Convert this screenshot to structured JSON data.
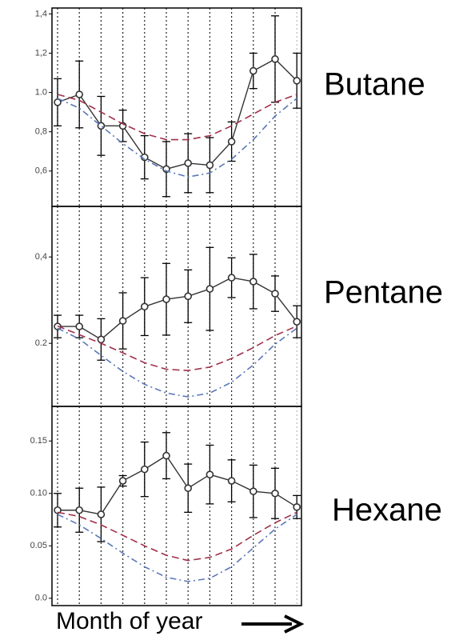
{
  "chart_data": [
    {
      "type": "line",
      "title": "Butane",
      "categories": [
        null,
        null,
        null,
        null,
        null,
        null,
        null,
        null,
        null,
        null,
        null,
        null
      ],
      "ylim": [
        0.42,
        1.43
      ],
      "yticks": [
        {
          "value": 0.6,
          "label": "0,6"
        },
        {
          "value": 0.8,
          "label": "0,8"
        },
        {
          "value": 1,
          "label": "1.0"
        },
        {
          "value": 1.2,
          "label": "1,2"
        },
        {
          "value": 1.4,
          "label": "1,4"
        }
      ],
      "grid": true,
      "series": [
        {
          "color": "#333333",
          "marker": "circle",
          "values": [
            0.95,
            0.99,
            0.83,
            0.83,
            0.67,
            0.61,
            0.64,
            0.63,
            0.75,
            1.11,
            1.17,
            1.06
          ],
          "errors": [
            0.12,
            0.17,
            0.15,
            0.08,
            0.11,
            0.14,
            0.15,
            0.14,
            0.1,
            0.09,
            0.22,
            0.14
          ]
        },
        {
          "color": "#a0304a",
          "dash": "dashed",
          "values": [
            0.99,
            0.96,
            0.9,
            0.84,
            0.79,
            0.76,
            0.76,
            0.78,
            0.83,
            0.89,
            0.95,
            0.99
          ]
        },
        {
          "color": "#5a78b8",
          "dash": "dashdot",
          "values": [
            0.97,
            0.92,
            0.83,
            0.74,
            0.66,
            0.6,
            0.57,
            0.59,
            0.66,
            0.76,
            0.88,
            0.97
          ]
        }
      ]
    },
    {
      "type": "line",
      "title": "Pentane",
      "categories": [
        null,
        null,
        null,
        null,
        null,
        null,
        null,
        null,
        null,
        null,
        null,
        null
      ],
      "ylim": [
        0.054,
        0.517
      ],
      "yticks": [
        {
          "value": 0.2,
          "label": "0.2"
        },
        {
          "value": 0.4,
          "label": "0,4"
        }
      ],
      "grid": true,
      "series": [
        {
          "color": "#333333",
          "marker": "circle",
          "values": [
            0.239,
            0.239,
            0.209,
            0.252,
            0.285,
            0.302,
            0.309,
            0.326,
            0.352,
            0.343,
            0.315,
            0.25
          ],
          "errors": [
            0.026,
            0.026,
            0.048,
            0.065,
            0.067,
            0.083,
            0.061,
            0.096,
            0.046,
            0.063,
            0.041,
            0.037
          ]
        },
        {
          "color": "#a0304a",
          "dash": "dashed",
          "values": [
            0.24,
            0.22,
            0.2,
            0.178,
            0.155,
            0.14,
            0.137,
            0.145,
            0.165,
            0.19,
            0.218,
            0.24
          ]
        },
        {
          "color": "#5a78b8",
          "dash": "dashdot",
          "values": [
            0.235,
            0.21,
            0.172,
            0.135,
            0.105,
            0.085,
            0.076,
            0.085,
            0.11,
            0.15,
            0.198,
            0.235
          ]
        }
      ]
    },
    {
      "type": "line",
      "title": "Hexane",
      "xlabel": "Month of year",
      "categories": [
        null,
        null,
        null,
        null,
        null,
        null,
        null,
        null,
        null,
        null,
        null,
        null
      ],
      "ylim": [
        -0.007,
        0.183
      ],
      "yticks": [
        {
          "value": 0,
          "label": "0.0"
        },
        0.05,
        {
          "value": 0.1,
          "label": "0.10"
        },
        0.15
      ],
      "grid": true,
      "series": [
        {
          "color": "#333333",
          "marker": "circle",
          "values": [
            0.084,
            0.084,
            0.08,
            0.112,
            0.123,
            0.136,
            0.105,
            0.118,
            0.112,
            0.102,
            0.1,
            0.087
          ],
          "errors": [
            0.016,
            0.021,
            0.026,
            0.005,
            0.026,
            0.022,
            0.023,
            0.028,
            0.02,
            0.025,
            0.024,
            0.011
          ]
        },
        {
          "color": "#a0304a",
          "dash": "dashed",
          "values": [
            0.082,
            0.078,
            0.07,
            0.06,
            0.05,
            0.041,
            0.036,
            0.039,
            0.047,
            0.06,
            0.072,
            0.082
          ]
        },
        {
          "color": "#5a78b8",
          "dash": "dashdot",
          "values": [
            0.08,
            0.07,
            0.057,
            0.043,
            0.03,
            0.02,
            0.016,
            0.019,
            0.03,
            0.048,
            0.066,
            0.08
          ]
        }
      ]
    }
  ]
}
